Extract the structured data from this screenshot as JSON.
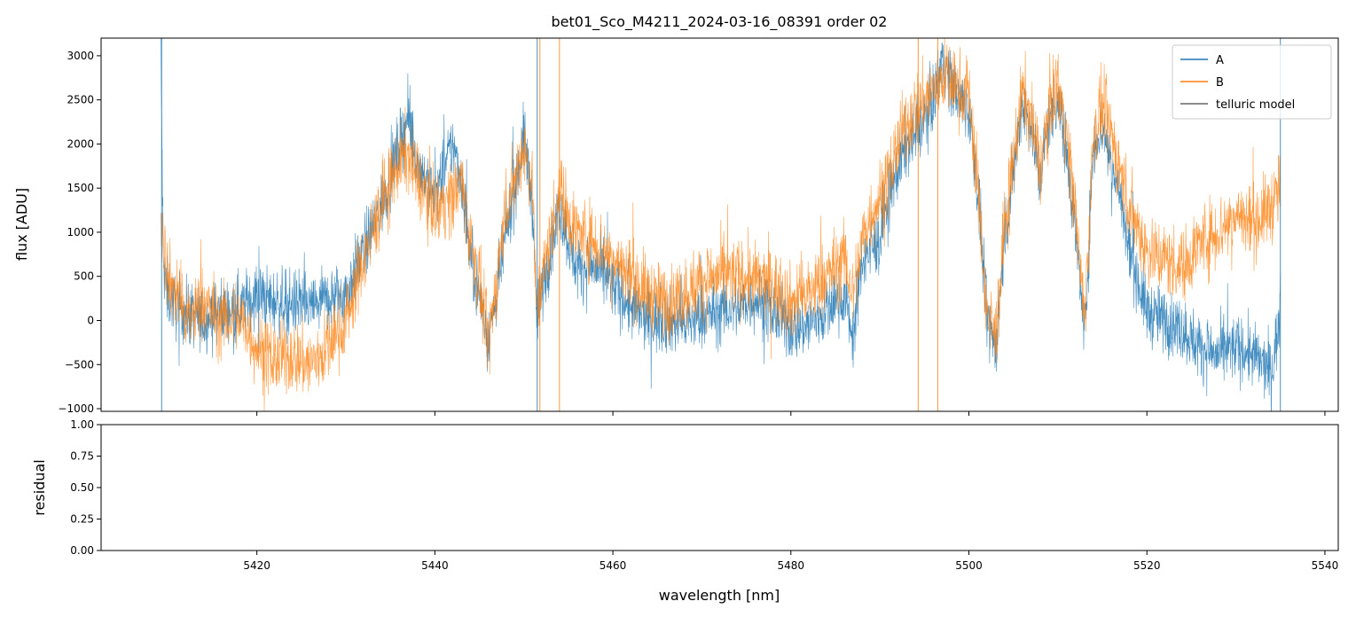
{
  "chart_data": {
    "type": "line",
    "title": "bet01_Sco_M4211_2024-03-16_08391  order 02",
    "xlabel": "wavelength [nm]",
    "xlim": [
      5402.5,
      5541.5
    ],
    "xticks": [
      5420,
      5440,
      5460,
      5480,
      5500,
      5520,
      5540
    ],
    "legend_position": "top-right",
    "panels": [
      {
        "id": "flux",
        "ylabel": "flux [ADU]",
        "ylim": [
          -1030,
          3200
        ],
        "yticks": [
          -1000,
          -500,
          0,
          500,
          1000,
          1500,
          2000,
          2500,
          3000
        ],
        "series": [
          {
            "name": "A",
            "color": "#1f77b4",
            "noise": 260,
            "x": [
              5409.2,
              5409.5,
              5410,
              5411,
              5412,
              5414,
              5416,
              5418,
              5420,
              5422,
              5424,
              5426,
              5428,
              5430,
              5432,
              5434,
              5436,
              5437,
              5438,
              5440,
              5442,
              5443,
              5444,
              5445,
              5446,
              5447,
              5448,
              5449,
              5450,
              5451,
              5451.4,
              5454,
              5455,
              5456,
              5458,
              5460,
              5462,
              5464,
              5466,
              5468,
              5470,
              5472,
              5474,
              5476,
              5478,
              5480,
              5482,
              5484,
              5486,
              5487,
              5488,
              5489,
              5490,
              5491,
              5492,
              5493,
              5494,
              5495,
              5496,
              5497,
              5498,
              5499,
              5500,
              5501,
              5502,
              5503,
              5504,
              5505,
              5506,
              5507,
              5508,
              5509,
              5510,
              5511,
              5512,
              5513,
              5514,
              5515,
              5516,
              5517,
              5518,
              5520,
              5522,
              5524,
              5526,
              5528,
              5530,
              5532,
              5534,
              5535
            ],
            "y": [
              3200,
              600,
              300,
              150,
              100,
              0,
              100,
              150,
              300,
              200,
              200,
              150,
              250,
              300,
              800,
              1300,
              2000,
              2300,
              1800,
              1400,
              2000,
              1600,
              700,
              300,
              -200,
              300,
              1000,
              1500,
              2100,
              1300,
              0,
              1300,
              900,
              600,
              600,
              400,
              150,
              0,
              0,
              -50,
              50,
              100,
              150,
              250,
              100,
              -100,
              -50,
              100,
              300,
              -200,
              700,
              800,
              900,
              1400,
              1700,
              2000,
              2100,
              2300,
              2500,
              3000,
              2700,
              2500,
              2400,
              1500,
              0,
              -300,
              900,
              1700,
              2500,
              2200,
              1600,
              2300,
              2500,
              1900,
              1000,
              -150,
              2000,
              2200,
              1800,
              1400,
              800,
              100,
              0,
              -100,
              -300,
              -400,
              -300,
              -400,
              -600,
              100
            ]
          },
          {
            "name": "B",
            "color": "#ff7f0e",
            "noise": 300,
            "x": [
              5409.2,
              5409.5,
              5410,
              5411,
              5412,
              5414,
              5416,
              5418,
              5420,
              5422,
              5424,
              5426,
              5428,
              5430,
              5432,
              5434,
              5436,
              5437,
              5438,
              5440,
              5442,
              5443,
              5444,
              5445,
              5446,
              5447,
              5448,
              5449,
              5450,
              5451,
              5451.4,
              5454,
              5455,
              5456,
              5458,
              5460,
              5462,
              5464,
              5466,
              5468,
              5470,
              5472,
              5474,
              5476,
              5478,
              5480,
              5482,
              5484,
              5486,
              5487,
              5488,
              5489,
              5490,
              5491,
              5492,
              5493,
              5494,
              5495,
              5496,
              5497,
              5498,
              5499,
              5500,
              5501,
              5502,
              5503,
              5504,
              5505,
              5506,
              5507,
              5508,
              5509,
              5510,
              5511,
              5512,
              5513,
              5514,
              5515,
              5516,
              5517,
              5518,
              5520,
              5522,
              5524,
              5526,
              5528,
              5530,
              5532,
              5534,
              5535
            ],
            "y": [
              1200,
              900,
              500,
              300,
              0,
              200,
              0,
              50,
              -300,
              -450,
              -400,
              -500,
              -300,
              0,
              700,
              1300,
              1800,
              1900,
              1600,
              1300,
              1400,
              1600,
              900,
              400,
              -300,
              500,
              1300,
              1600,
              2000,
              1500,
              100,
              1500,
              1200,
              1000,
              900,
              700,
              500,
              300,
              200,
              300,
              450,
              500,
              500,
              450,
              400,
              200,
              300,
              500,
              700,
              300,
              900,
              1200,
              1400,
              1600,
              2000,
              2200,
              2400,
              2500,
              2600,
              2800,
              2700,
              2600,
              2600,
              1500,
              100,
              -200,
              1000,
              1800,
              2600,
              2300,
              1700,
              2400,
              2700,
              2100,
              1200,
              0,
              2100,
              2400,
              2100,
              1700,
              1300,
              800,
              700,
              600,
              900,
              1000,
              1200,
              1100,
              1300,
              1500
            ]
          },
          {
            "name": "telluric model",
            "color": "#666666",
            "noise": 0,
            "x": [],
            "y": []
          }
        ],
        "spikes": [
          {
            "x": 5409.3,
            "color": "#1f77b4"
          },
          {
            "x": 5451.5,
            "color": "#1f77b4"
          },
          {
            "x": 5535.0,
            "color": "#1f77b4"
          },
          {
            "x": 5451.8,
            "color": "#ff7f0e"
          },
          {
            "x": 5454.0,
            "color": "#ff7f0e"
          },
          {
            "x": 5494.3,
            "color": "#ff7f0e"
          },
          {
            "x": 5496.5,
            "color": "#ff7f0e"
          }
        ]
      },
      {
        "id": "residual",
        "ylabel": "residual",
        "ylim": [
          0,
          1
        ],
        "yticks": [
          0.0,
          0.25,
          0.5,
          0.75,
          1.0
        ],
        "ytick_labels": [
          "0.00",
          "0.25",
          "0.50",
          "0.75",
          "1.00"
        ],
        "series": []
      }
    ]
  }
}
